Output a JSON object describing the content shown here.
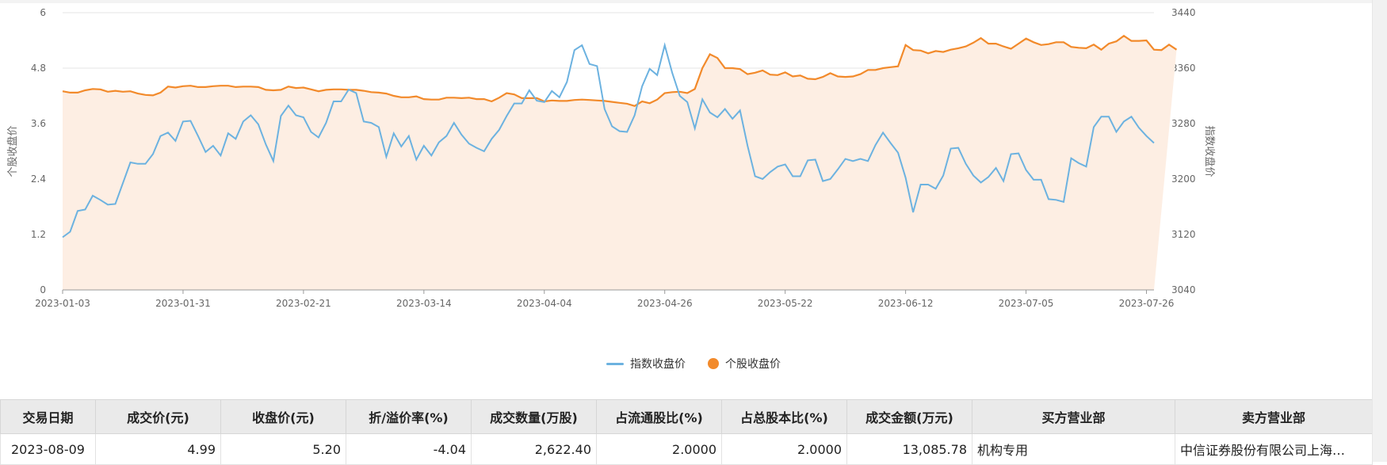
{
  "chart_data": {
    "type": "line",
    "ylabel_left": "个股收盘价",
    "ylabel_right": "指数收盘价",
    "ylim_left": [
      0,
      6
    ],
    "ylim_right": [
      3040,
      3440
    ],
    "yticks_left": [
      "0",
      "1.2",
      "2.4",
      "3.6",
      "4.8",
      "6"
    ],
    "yticks_right": [
      "3040",
      "3120",
      "3200",
      "3280",
      "3360",
      "3440"
    ],
    "xticks": [
      {
        "label": "2023-01-03",
        "i": 0
      },
      {
        "label": "2023-01-31",
        "i": 16
      },
      {
        "label": "2023-02-21",
        "i": 32
      },
      {
        "label": "2023-03-14",
        "i": 48
      },
      {
        "label": "2023-04-04",
        "i": 64
      },
      {
        "label": "2023-04-26",
        "i": 80
      },
      {
        "label": "2023-05-22",
        "i": 96
      },
      {
        "label": "2023-06-12",
        "i": 112
      },
      {
        "label": "2023-07-05",
        "i": 128
      },
      {
        "label": "2023-07-26",
        "i": 144
      }
    ],
    "series": [
      {
        "name": "指数收盘价",
        "axis": "right",
        "color": "#6cb2e0",
        "values": [
          3116,
          3124,
          3154,
          3156,
          3176,
          3170,
          3163,
          3164,
          3194,
          3224,
          3222,
          3222,
          3236,
          3262,
          3267,
          3255,
          3283,
          3284,
          3262,
          3239,
          3248,
          3234,
          3266,
          3258,
          3283,
          3292,
          3279,
          3250,
          3226,
          3291,
          3306,
          3292,
          3289,
          3268,
          3260,
          3281,
          3312,
          3312,
          3329,
          3324,
          3283,
          3281,
          3275,
          3232,
          3266,
          3247,
          3262,
          3228,
          3248,
          3234,
          3253,
          3262,
          3281,
          3264,
          3251,
          3245,
          3240,
          3258,
          3271,
          3291,
          3309,
          3309,
          3328,
          3313,
          3311,
          3327,
          3318,
          3340,
          3386,
          3393,
          3366,
          3363,
          3301,
          3276,
          3269,
          3268,
          3292,
          3334,
          3359,
          3350,
          3393,
          3353,
          3320,
          3311,
          3273,
          3315,
          3296,
          3289,
          3301,
          3287,
          3299,
          3248,
          3204,
          3200,
          3210,
          3218,
          3221,
          3204,
          3204,
          3227,
          3228,
          3197,
          3200,
          3214,
          3229,
          3226,
          3229,
          3226,
          3249,
          3267,
          3252,
          3238,
          3202,
          3152,
          3192,
          3192,
          3186,
          3205,
          3244,
          3245,
          3222,
          3205,
          3195,
          3203,
          3216,
          3197,
          3236,
          3237,
          3213,
          3199,
          3199,
          3171,
          3170,
          3167,
          3230,
          3223,
          3218,
          3275,
          3290,
          3290,
          3268,
          3283,
          3290,
          3274,
          3262,
          3252
        ]
      },
      {
        "name": "个股收盘价",
        "axis": "left",
        "color": "#f28a2b",
        "values": [
          4.3,
          4.27,
          4.27,
          4.32,
          4.35,
          4.34,
          4.29,
          4.31,
          4.29,
          4.3,
          4.25,
          4.22,
          4.21,
          4.27,
          4.4,
          4.38,
          4.41,
          4.42,
          4.39,
          4.39,
          4.41,
          4.42,
          4.42,
          4.39,
          4.4,
          4.4,
          4.39,
          4.33,
          4.32,
          4.33,
          4.4,
          4.37,
          4.38,
          4.34,
          4.3,
          4.33,
          4.34,
          4.34,
          4.33,
          4.33,
          4.31,
          4.28,
          4.27,
          4.25,
          4.2,
          4.17,
          4.17,
          4.19,
          4.13,
          4.12,
          4.12,
          4.16,
          4.16,
          4.15,
          4.16,
          4.13,
          4.13,
          4.08,
          4.16,
          4.26,
          4.23,
          4.15,
          4.15,
          4.15,
          4.08,
          4.1,
          4.09,
          4.09,
          4.11,
          4.12,
          4.11,
          4.1,
          4.09,
          4.07,
          4.05,
          4.03,
          3.98,
          4.08,
          4.04,
          4.12,
          4.26,
          4.28,
          4.29,
          4.26,
          4.35,
          4.8,
          5.1,
          5.02,
          4.8,
          4.8,
          4.78,
          4.67,
          4.7,
          4.75,
          4.66,
          4.65,
          4.71,
          4.62,
          4.64,
          4.57,
          4.56,
          4.61,
          4.69,
          4.62,
          4.61,
          4.62,
          4.67,
          4.76,
          4.76,
          4.8,
          4.82,
          4.84,
          5.3,
          5.19,
          5.18,
          5.12,
          5.17,
          5.15,
          5.2,
          5.23,
          5.27,
          5.35,
          5.45,
          5.33,
          5.33,
          5.27,
          5.22,
          5.33,
          5.44,
          5.36,
          5.3,
          5.32,
          5.36,
          5.36,
          5.26,
          5.24,
          5.23,
          5.31,
          5.2,
          5.33,
          5.38,
          5.5,
          5.39,
          5.39,
          5.4,
          5.2,
          5.19,
          5.31,
          5.2
        ]
      }
    ]
  },
  "legend": {
    "index_label": "指数收盘价",
    "stock_label": "个股收盘价"
  },
  "table": {
    "headers": [
      "交易日期",
      "成交价(元)",
      "收盘价(元)",
      "折/溢价率(%)",
      "成交数量(万股)",
      "占流通股比(%)",
      "占总股本比(%)",
      "成交金额(万元)",
      "买方营业部",
      "卖方营业部"
    ],
    "rows": [
      [
        "2023-08-09",
        "4.99",
        "5.20",
        "-4.04",
        "2,622.40",
        "2.0000",
        "2.0000",
        "13,085.78",
        "机构专用",
        "中信证券股份有限公司上海…"
      ]
    ]
  }
}
